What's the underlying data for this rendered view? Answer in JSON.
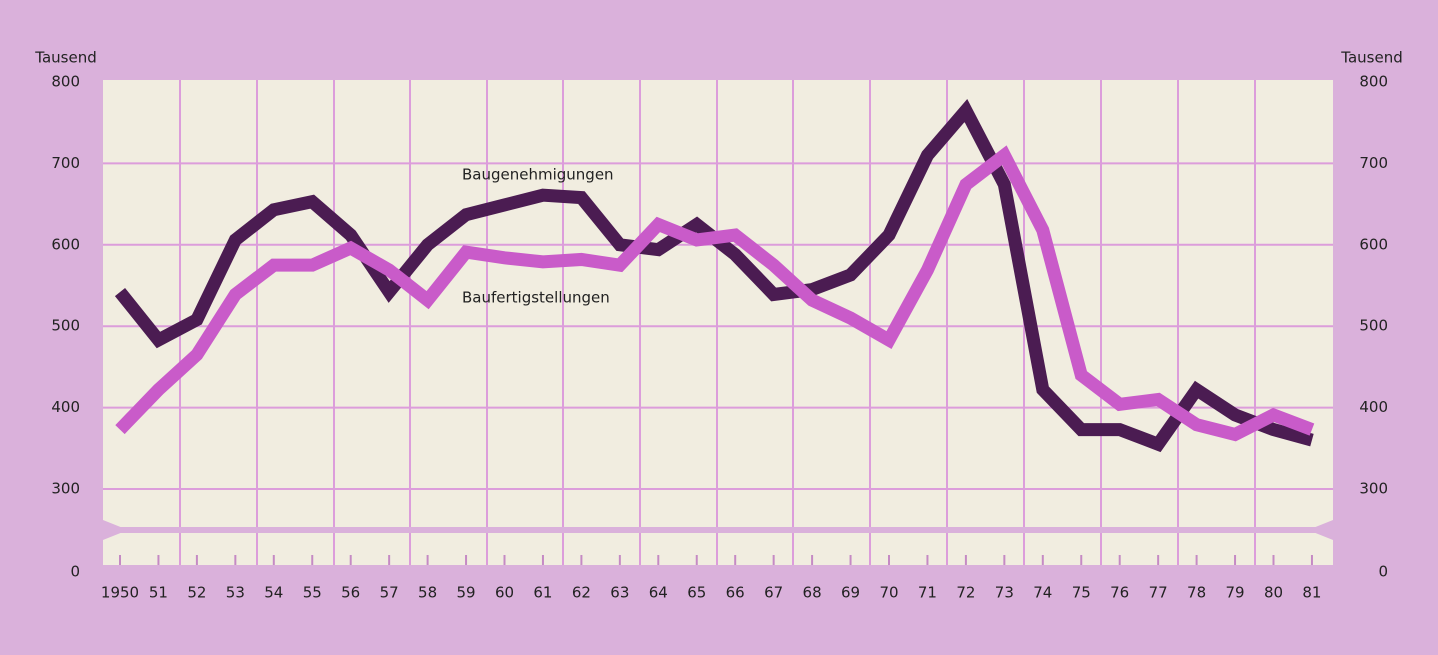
{
  "chart_data": {
    "type": "line",
    "y_label": "Tausend",
    "categories": [
      "1950",
      "51",
      "52",
      "53",
      "54",
      "55",
      "56",
      "57",
      "58",
      "59",
      "60",
      "61",
      "62",
      "63",
      "64",
      "65",
      "66",
      "67",
      "68",
      "69",
      "70",
      "71",
      "72",
      "73",
      "74",
      "75",
      "76",
      "77",
      "78",
      "79",
      "80",
      "81"
    ],
    "series": [
      {
        "name": "Baugenehmigungen",
        "color": "#4b1c52",
        "values": [
          542,
          483,
          508,
          606,
          643,
          653,
          612,
          542,
          600,
          637,
          649,
          661,
          658,
          600,
          594,
          625,
          588,
          539,
          545,
          563,
          612,
          710,
          765,
          674,
          422,
          373,
          373,
          355,
          422,
          391,
          373,
          360
        ]
      },
      {
        "name": "Baufertigstellungen",
        "color": "#c95bc9",
        "values": [
          373,
          422,
          465,
          539,
          575,
          575,
          596,
          569,
          532,
          591,
          584,
          579,
          582,
          575,
          625,
          606,
          612,
          575,
          532,
          510,
          483,
          569,
          674,
          710,
          618,
          440,
          404,
          410,
          379,
          367,
          391,
          373
        ]
      }
    ],
    "ylim": [
      300,
      800
    ],
    "axis_break": [
      0,
      300
    ],
    "yticks": [
      0,
      300,
      400,
      500,
      600,
      700,
      800
    ],
    "grid": true
  }
}
